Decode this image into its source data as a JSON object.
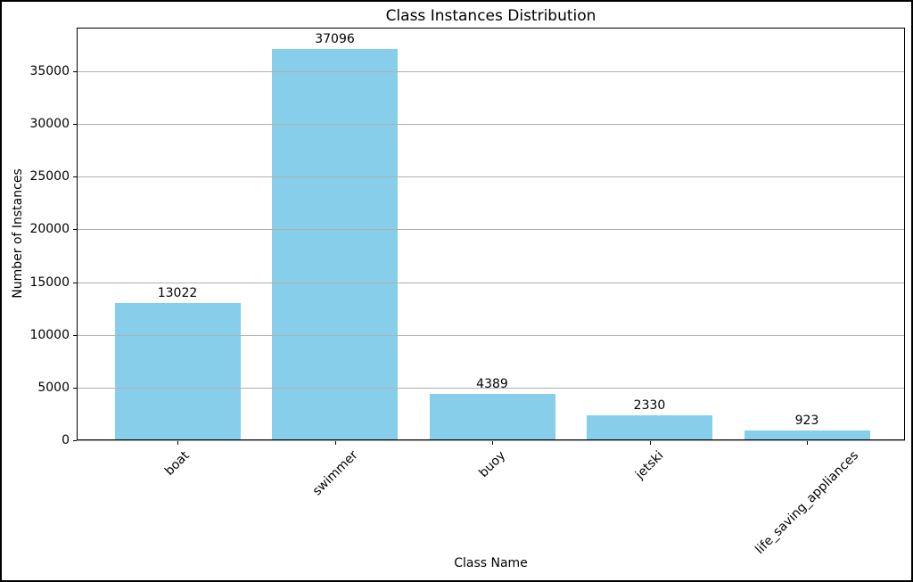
{
  "figure": {
    "background": "#ffffff",
    "frame_color": "#000000"
  },
  "chart_data": {
    "type": "bar",
    "title": "Class Instances Distribution",
    "xlabel": "Class Name",
    "ylabel": "Number of Instances",
    "categories": [
      "boat",
      "swimmer",
      "buoy",
      "jetski",
      "life_saving_appliances"
    ],
    "values": [
      13022,
      37096,
      4389,
      2330,
      923
    ],
    "bar_color": "#87CEEB",
    "grid": true,
    "grid_color": "#b0b0b0",
    "grid_over_bars": true,
    "legend_position": "none",
    "yticks": [
      0,
      5000,
      10000,
      15000,
      20000,
      25000,
      30000,
      35000
    ],
    "ylim": [
      0,
      39150
    ],
    "xtick_rotation_deg": 45
  }
}
